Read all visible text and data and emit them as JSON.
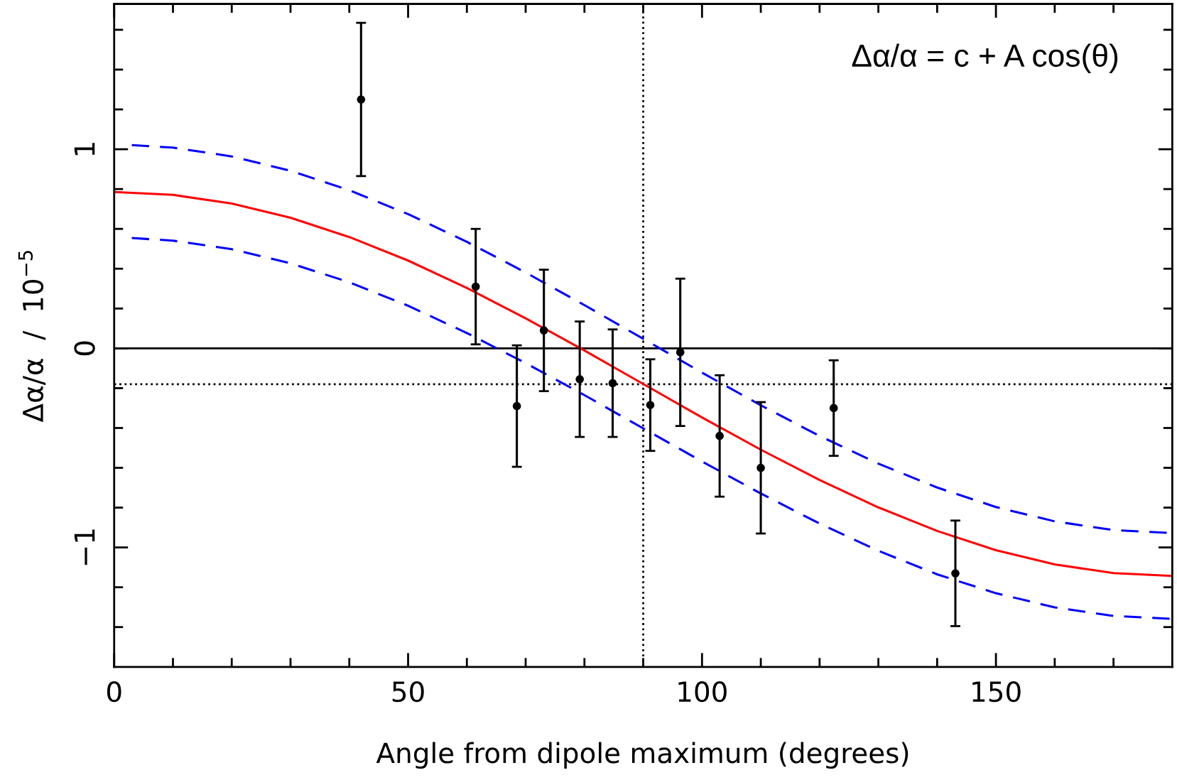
{
  "chart_data": {
    "type": "line",
    "xlabel": "Angle from dipole maximum (degrees)",
    "ylabel": "Δα/α  /  10$^{−5}$",
    "annotations": [
      "Δα/α = c + A cos(θ)"
    ],
    "xlim": [
      0,
      180
    ],
    "ylim": [
      -1.6,
      1.73
    ],
    "xticks": [
      0,
      {
        "value": 10,
        "label": null
      },
      {
        "value": 20,
        "label": null
      },
      {
        "value": 30,
        "label": null
      },
      {
        "value": 40,
        "label": null
      },
      50,
      {
        "value": 60,
        "label": null
      },
      {
        "value": 70,
        "label": null
      },
      {
        "value": 80,
        "label": null
      },
      {
        "value": 90,
        "label": null
      },
      100,
      {
        "value": 110,
        "label": null
      },
      {
        "value": 120,
        "label": null
      },
      {
        "value": 130,
        "label": null
      },
      {
        "value": 140,
        "label": null
      },
      150,
      {
        "value": 160,
        "label": null
      },
      {
        "value": 170,
        "label": null
      }
    ],
    "yticks": [
      {
        "value": -1.4,
        "label": null
      },
      {
        "value": -1.2,
        "label": null
      },
      -1,
      {
        "value": -0.8,
        "label": null
      },
      {
        "value": -0.6,
        "label": null
      },
      {
        "value": -0.4,
        "label": null
      },
      {
        "value": -0.2,
        "label": null
      },
      0,
      {
        "value": 0.2,
        "label": null
      },
      {
        "value": 0.4,
        "label": null
      },
      {
        "value": 0.6,
        "label": null
      },
      {
        "value": 0.8,
        "label": null
      },
      1,
      {
        "value": 1.2,
        "label": null
      },
      {
        "value": 1.4,
        "label": null
      },
      {
        "value": 1.6,
        "label": null
      }
    ],
    "grid": false,
    "ref_lines": [
      {
        "axis": "y",
        "value": 0,
        "color": "#000000",
        "line_style": "solid"
      },
      {
        "axis": "y",
        "value": -0.18,
        "color": "#000000",
        "line_style": "dotted"
      },
      {
        "axis": "x",
        "value": 90,
        "color": "#000000",
        "line_style": "dotted"
      }
    ],
    "series": [
      {
        "color": "#ff0000",
        "line_style": "solid",
        "marker": "none",
        "x": [
          0,
          10,
          20,
          30,
          40,
          50,
          60,
          70,
          80,
          90,
          100,
          110,
          120,
          130,
          140,
          150,
          160,
          170,
          180
        ],
        "values": [
          0.785,
          0.771,
          0.727,
          0.656,
          0.559,
          0.441,
          0.303,
          0.151,
          -0.011,
          -0.179,
          -0.347,
          -0.509,
          -0.661,
          -0.799,
          -0.917,
          -1.014,
          -1.085,
          -1.129,
          -1.143
        ]
      },
      {
        "type": "line",
        "color": "#0000ff",
        "line_style": "dashed",
        "marker": "none",
        "x": [
          3,
          10,
          20,
          30,
          40,
          50,
          60,
          70,
          80,
          90,
          100,
          110,
          120,
          130,
          140,
          150,
          160,
          170,
          180
        ],
        "values": [
          1.021,
          1.008,
          0.964,
          0.892,
          0.794,
          0.674,
          0.535,
          0.381,
          0.217,
          0.048,
          -0.122,
          -0.286,
          -0.44,
          -0.579,
          -0.699,
          -0.797,
          -0.869,
          -0.913,
          -0.928
        ]
      },
      {
        "type": "line",
        "color": "#0000ff",
        "line_style": "dashed",
        "marker": "none",
        "x": [
          3,
          10,
          20,
          30,
          40,
          50,
          60,
          70,
          80,
          90,
          100,
          110,
          120,
          130,
          140,
          150,
          160,
          170,
          180
        ],
        "values": [
          0.554,
          0.541,
          0.498,
          0.427,
          0.332,
          0.214,
          0.077,
          -0.074,
          -0.235,
          -0.402,
          -0.568,
          -0.729,
          -0.88,
          -1.017,
          -1.135,
          -1.23,
          -1.301,
          -1.344,
          -1.359
        ]
      },
      {
        "type": "scatter",
        "color": "#000000",
        "marker": "circle",
        "x": [
          42.0,
          61.5,
          68.5,
          73.1,
          79.2,
          84.8,
          91.2,
          96.3,
          103.0,
          110.0,
          122.4,
          143.1
        ],
        "values": [
          1.25,
          0.31,
          -0.29,
          0.09,
          -0.155,
          -0.175,
          -0.285,
          -0.02,
          -0.44,
          -0.6,
          -0.3,
          -1.13
        ],
        "errors": [
          0.385,
          0.29,
          0.305,
          0.305,
          0.29,
          0.27,
          0.23,
          0.37,
          0.305,
          0.33,
          0.24,
          0.265
        ]
      }
    ]
  }
}
